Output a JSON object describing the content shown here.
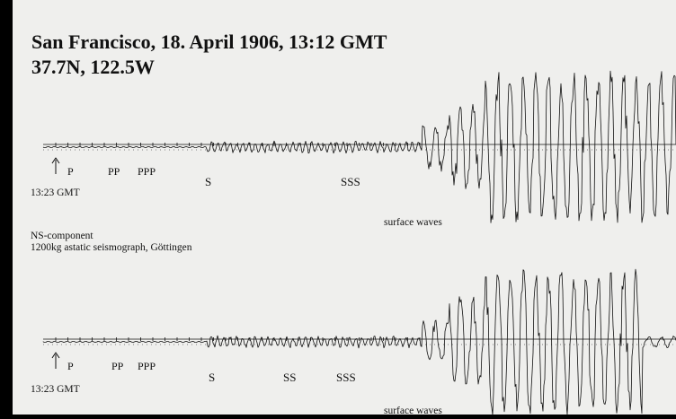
{
  "title": {
    "line1": "San Francisco, 18. April 1906, 13:12 GMT",
    "line2": "37.7N, 122.5W"
  },
  "records": [
    {
      "time_label": "13:23 GMT",
      "phases": {
        "p": "P",
        "pp": "PP",
        "ppp": "PPP",
        "s": "S",
        "sss": "SSS"
      },
      "surface_label": "surface waves"
    },
    {
      "time_label": "13:23 GMT",
      "phases": {
        "p": "P",
        "pp": "PP",
        "ppp": "PPP",
        "s": "S",
        "ss": "SS",
        "sss": "SSS"
      },
      "surface_label": "surface waves"
    }
  ],
  "instrument": {
    "component": "NS-component",
    "seismograph": "1200kg astatic seismograph, Göttingen"
  },
  "colors": {
    "background": "#000000",
    "paper": "#efefed",
    "ink": "#111111"
  }
}
